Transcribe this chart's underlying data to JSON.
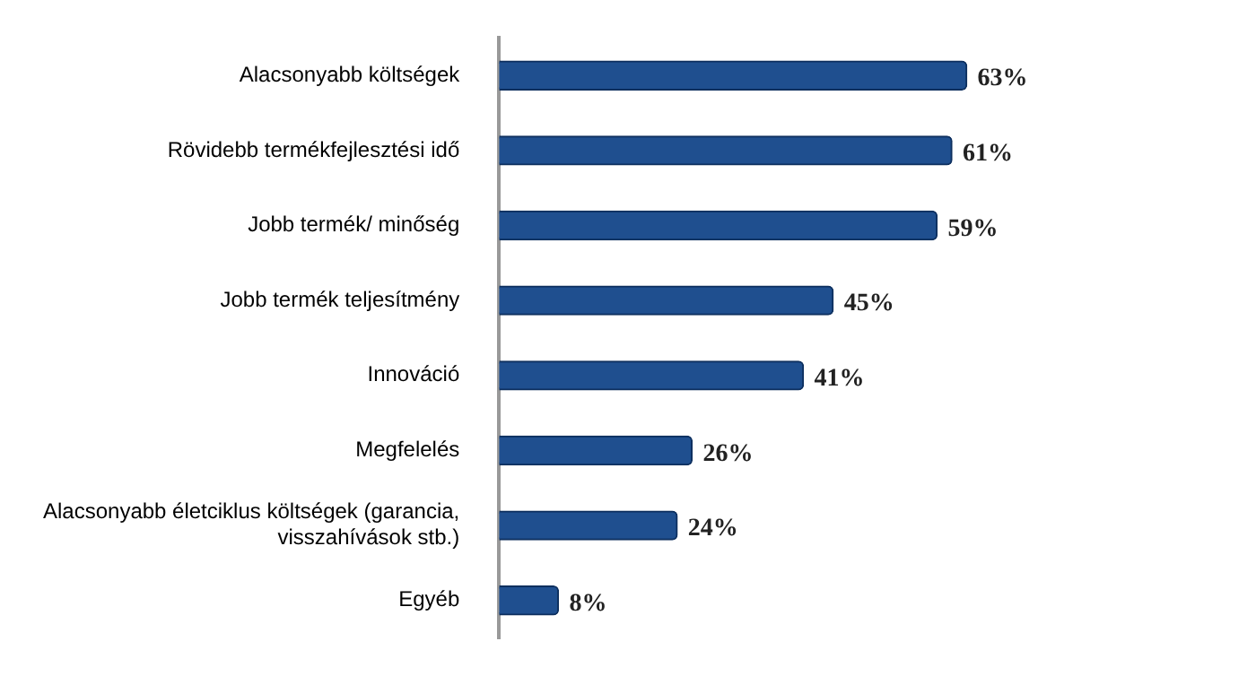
{
  "chart_data": {
    "type": "bar",
    "orientation": "horizontal",
    "categories": [
      "Alacsonyabb költségek",
      "Rövidebb termékfejlesztési idő",
      "Jobb termék/ minőség",
      "Jobb termék teljesítmény",
      "Innováció",
      "Megfelelés",
      "Alacsonyabb életciklus költségek (garancia, visszahívások stb.)",
      "Egyéb"
    ],
    "values": [
      63,
      61,
      59,
      45,
      41,
      26,
      24,
      8
    ],
    "value_labels": [
      "63%",
      "61%",
      "59%",
      "45%",
      "41%",
      "26%",
      "24%",
      "8%"
    ],
    "color": "#1f4f8f"
  }
}
